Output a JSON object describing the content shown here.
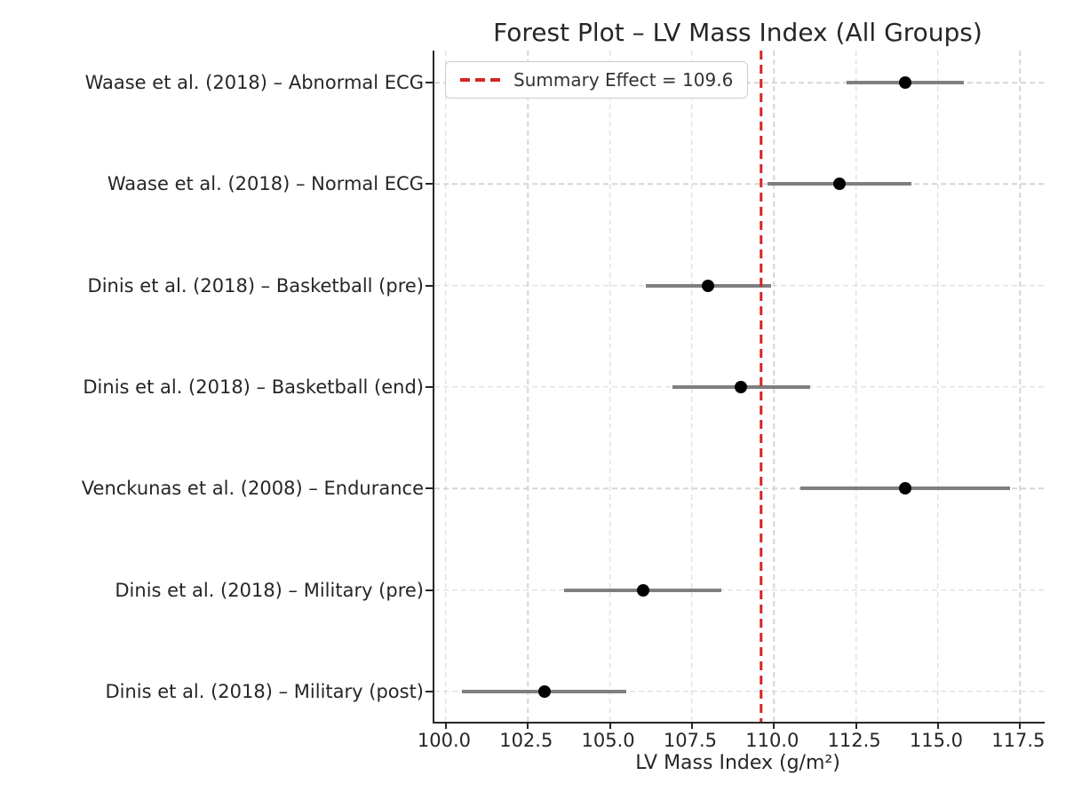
{
  "colors": {
    "summary_line": "#d42525",
    "ci_line": "#7f7f7f",
    "marker": "#000000",
    "grid": "#d6d6d6",
    "text": "#262626"
  },
  "chart_data": {
    "type": "scatter",
    "variant": "forest-plot",
    "title": "Forest Plot – LV Mass Index (All Groups)",
    "xlabel": "LV Mass Index (g/m²)",
    "grid": true,
    "legend_position": "upper-left",
    "legend_label": "Summary Effect = 109.6",
    "summary_effect": 109.6,
    "xlim": [
      99.65,
      118.25
    ],
    "x_tick_values": [
      100.0,
      102.5,
      105.0,
      107.5,
      110.0,
      112.5,
      115.0,
      117.5
    ],
    "x_ticks": [
      "100.0",
      "102.5",
      "105.0",
      "107.5",
      "110.0",
      "112.5",
      "115.0",
      "117.5"
    ],
    "studies": [
      {
        "label": "Waase et al. (2018) – Abnormal ECG",
        "mean": 114.0,
        "ci_low": 112.2,
        "ci_high": 115.8
      },
      {
        "label": "Waase et al. (2018) – Normal ECG",
        "mean": 112.0,
        "ci_low": 109.8,
        "ci_high": 114.2
      },
      {
        "label": "Dinis et al. (2018) – Basketball (pre)",
        "mean": 108.0,
        "ci_low": 106.1,
        "ci_high": 109.9
      },
      {
        "label": "Dinis et al. (2018) – Basketball (end)",
        "mean": 109.0,
        "ci_low": 106.9,
        "ci_high": 111.1
      },
      {
        "label": "Venckunas et al. (2008) – Endurance",
        "mean": 114.0,
        "ci_low": 110.8,
        "ci_high": 117.2
      },
      {
        "label": "Dinis et al. (2018) – Military (pre)",
        "mean": 106.0,
        "ci_low": 103.6,
        "ci_high": 108.4
      },
      {
        "label": "Dinis et al. (2018) – Military (post)",
        "mean": 103.0,
        "ci_low": 100.5,
        "ci_high": 105.5
      }
    ]
  }
}
